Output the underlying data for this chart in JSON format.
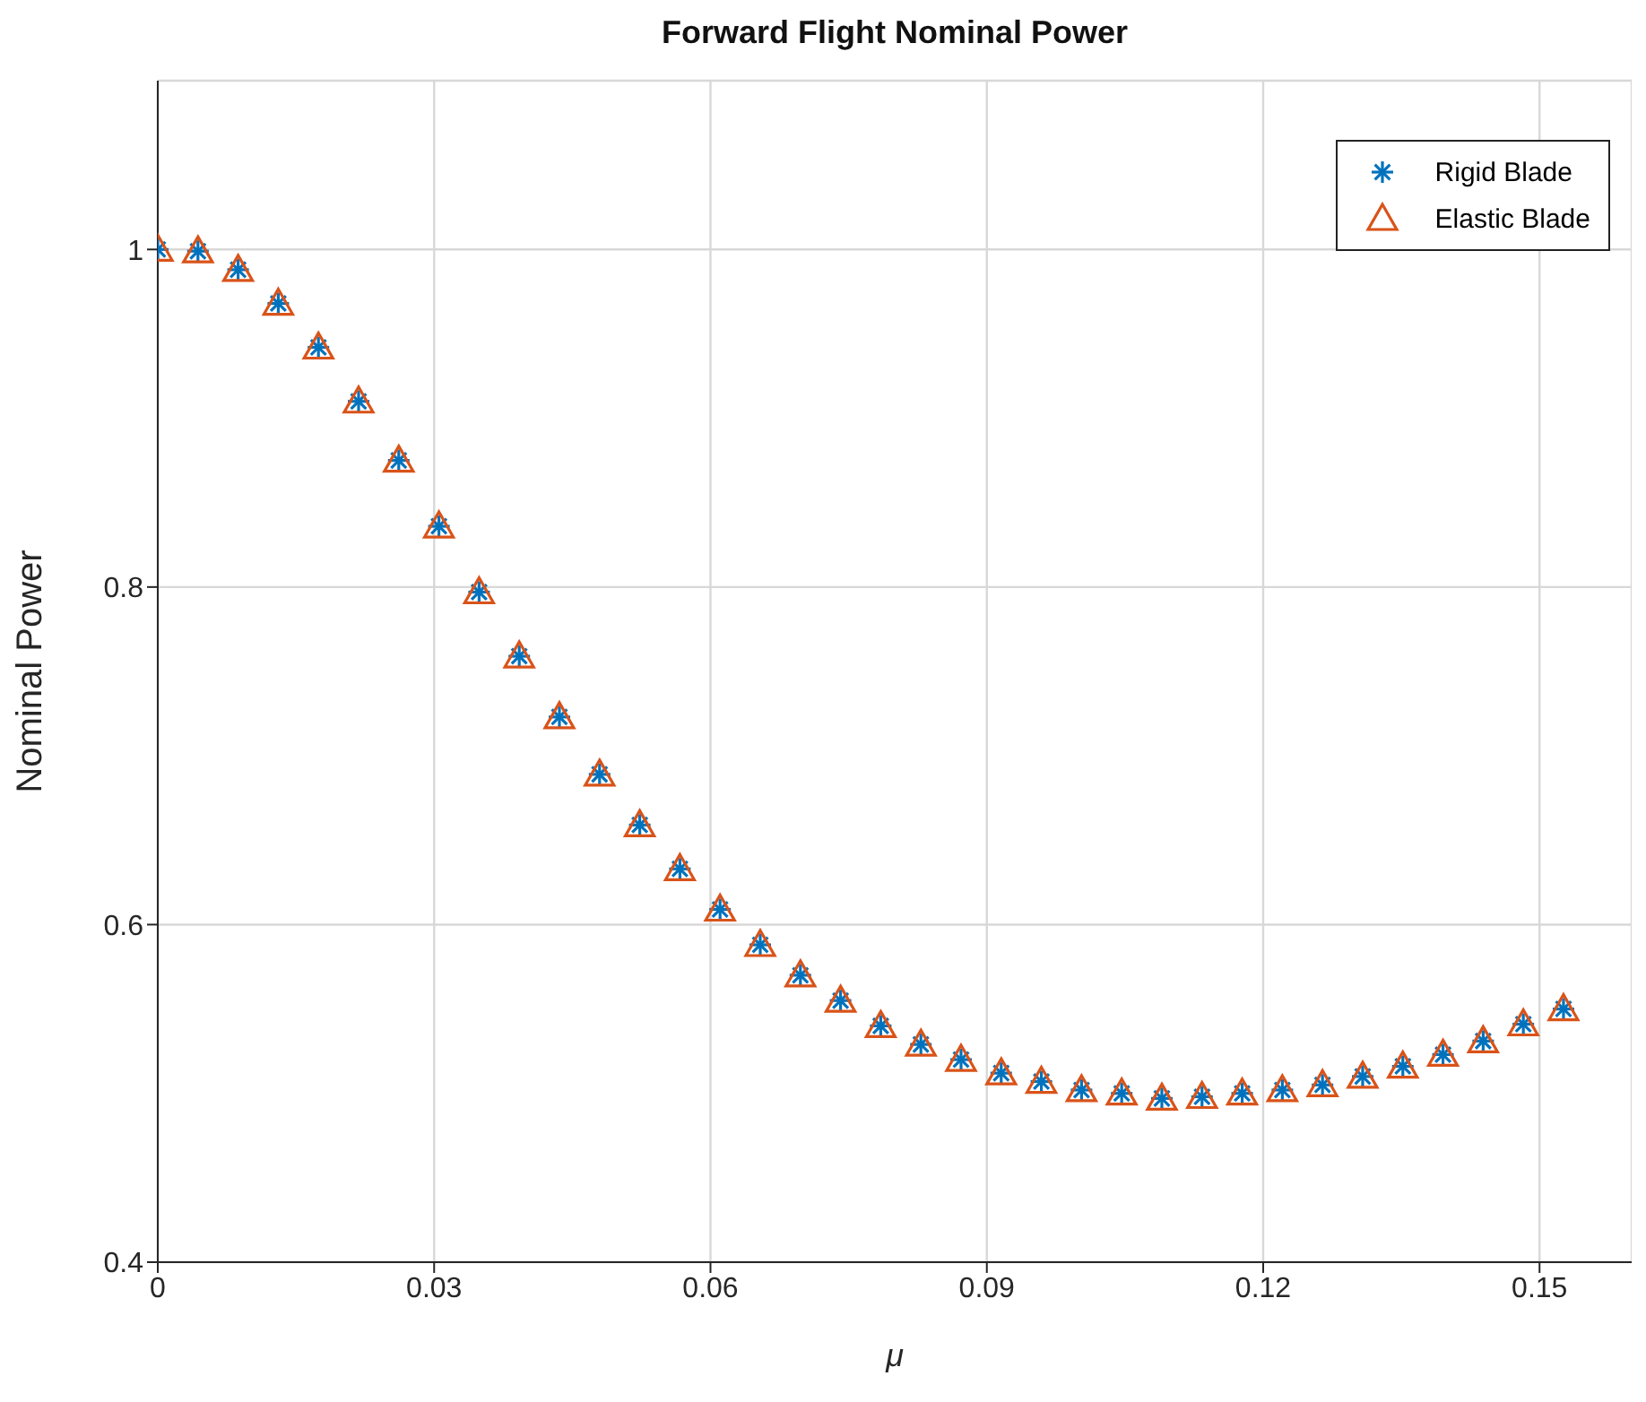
{
  "chart_data": {
    "type": "scatter",
    "title": "Forward Flight Nominal Power",
    "xlabel": "μ",
    "ylabel": "Nominal Power",
    "x": [
      0,
      0.00436,
      0.00872,
      0.01308,
      0.01744,
      0.0218,
      0.02616,
      0.03052,
      0.03488,
      0.03924,
      0.0436,
      0.04796,
      0.05232,
      0.05668,
      0.06104,
      0.0654,
      0.06976,
      0.07412,
      0.07848,
      0.08284,
      0.0872,
      0.09156,
      0.09592,
      0.10028,
      0.10464,
      0.109,
      0.11336,
      0.11772,
      0.12208,
      0.12644,
      0.1308,
      0.13516,
      0.13952,
      0.14388,
      0.14824,
      0.1526
    ],
    "series": [
      {
        "name": "Rigid Blade",
        "color": "#0072bd",
        "marker": "cross",
        "values": [
          1.0,
          0.999,
          0.988,
          0.968,
          0.942,
          0.91,
          0.875,
          0.836,
          0.797,
          0.759,
          0.723,
          0.689,
          0.659,
          0.633,
          0.609,
          0.588,
          0.57,
          0.555,
          0.54,
          0.529,
          0.52,
          0.512,
          0.507,
          0.502,
          0.5,
          0.497,
          0.498,
          0.5,
          0.502,
          0.505,
          0.51,
          0.516,
          0.523,
          0.531,
          0.541,
          0.55
        ]
      },
      {
        "name": "Elastic Blade",
        "color": "#d95319",
        "marker": "triangle",
        "values": [
          1.0,
          0.999,
          0.988,
          0.968,
          0.942,
          0.91,
          0.875,
          0.836,
          0.797,
          0.759,
          0.723,
          0.689,
          0.659,
          0.633,
          0.609,
          0.588,
          0.57,
          0.555,
          0.54,
          0.529,
          0.52,
          0.512,
          0.507,
          0.502,
          0.5,
          0.497,
          0.498,
          0.5,
          0.502,
          0.505,
          0.51,
          0.516,
          0.523,
          0.531,
          0.541,
          0.55
        ]
      }
    ],
    "xlim": [
      0,
      0.16
    ],
    "xticks": [
      0,
      0.03,
      0.06,
      0.09,
      0.12,
      0.15
    ],
    "ylim": [
      0.4,
      1.1
    ],
    "yticks": [
      0.4,
      0.6,
      0.8,
      1
    ],
    "grid": true,
    "legend": "top right"
  }
}
